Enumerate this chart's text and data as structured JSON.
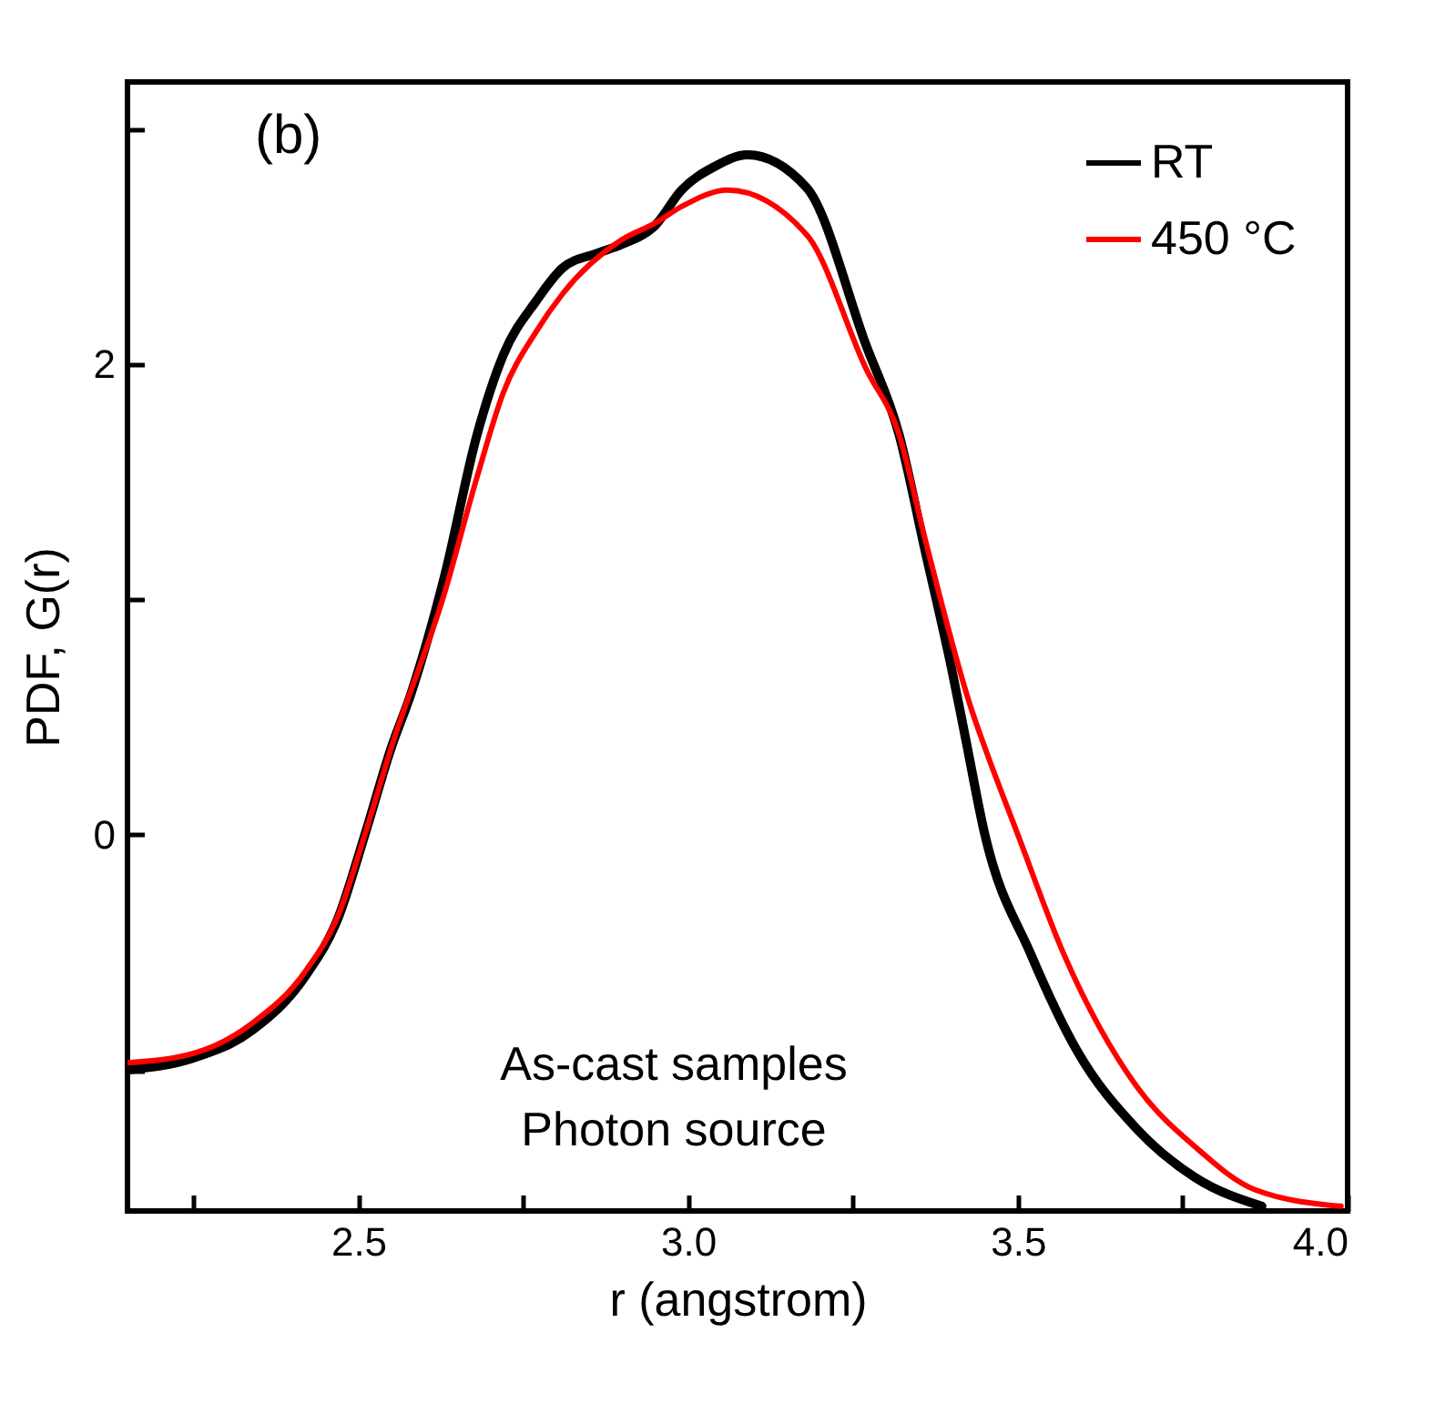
{
  "chart_data": {
    "type": "line",
    "xlabel": "r (angstrom)",
    "ylabel": "PDF, G(r)",
    "annotations": [
      "(b)",
      "As-cast samples",
      "Photon source"
    ],
    "xlim": [
      2.15,
      4.0
    ],
    "xticks": [
      {
        "value": 2.25,
        "label": null
      },
      2.5,
      {
        "value": 2.75,
        "label": null
      },
      {
        "value": 3.0,
        "label": "3.0"
      },
      {
        "value": 3.25,
        "label": null
      },
      3.5,
      {
        "value": 3.75,
        "label": null
      },
      {
        "value": 4.0,
        "label": "4.0"
      }
    ],
    "ylim": [
      -1.6,
      3.2
    ],
    "yticks": [
      {
        "value": -1,
        "label": null
      },
      0,
      {
        "value": 1,
        "label": null
      },
      2,
      {
        "value": 3,
        "label": null
      }
    ],
    "legend": "top right",
    "grid": false,
    "marker": "none",
    "line_style": "solid",
    "series": [
      {
        "name": "RT",
        "color": "#000000",
        "x": [
          2.15,
          2.25,
          2.34,
          2.42,
          2.47,
          2.51,
          2.55,
          2.58,
          2.63,
          2.68,
          2.72,
          2.77,
          2.81,
          2.86,
          2.9,
          2.95,
          2.99,
          3.04,
          3.09,
          3.18,
          3.27,
          3.32,
          3.36,
          3.4,
          3.42,
          3.45,
          3.52,
          3.59,
          3.68,
          3.77,
          3.87
        ],
        "values": [
          -1.0,
          -0.95,
          -0.83,
          -0.6,
          -0.35,
          0.0,
          0.37,
          0.6,
          1.09,
          1.7,
          2.04,
          2.27,
          2.41,
          2.47,
          2.51,
          2.59,
          2.74,
          2.84,
          2.89,
          2.75,
          2.08,
          1.7,
          1.2,
          0.7,
          0.42,
          0.0,
          -0.51,
          -0.92,
          -1.25,
          -1.46,
          -1.58
        ]
      },
      {
        "name": "450 °C",
        "color": "#ff0000",
        "x": [
          2.15,
          2.25,
          2.34,
          2.42,
          2.47,
          2.51,
          2.55,
          2.63,
          2.68,
          2.72,
          2.77,
          2.81,
          2.9,
          2.95,
          2.99,
          3.06,
          3.18,
          3.27,
          3.32,
          3.36,
          3.43,
          3.45,
          3.5,
          3.57,
          3.68,
          3.77,
          3.86,
          3.99
        ],
        "values": [
          -0.97,
          -0.93,
          -0.8,
          -0.58,
          -0.34,
          0.0,
          0.37,
          1.02,
          1.52,
          1.88,
          2.14,
          2.3,
          2.53,
          2.6,
          2.67,
          2.74,
          2.55,
          1.98,
          1.7,
          1.25,
          0.53,
          0.37,
          0.0,
          -0.51,
          -1.07,
          -1.33,
          -1.51,
          -1.58
        ]
      }
    ]
  }
}
